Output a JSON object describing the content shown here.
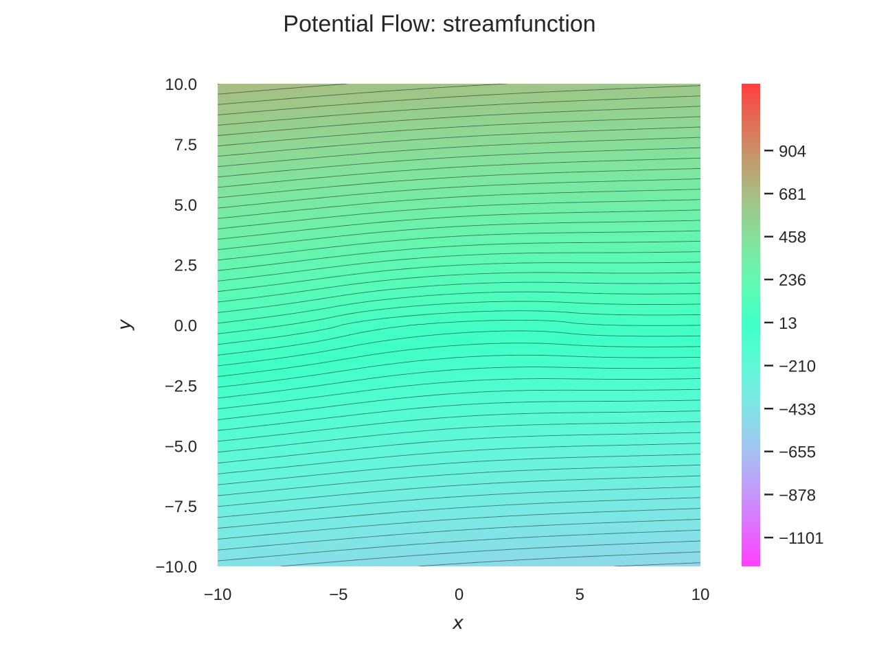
{
  "chart_data": {
    "type": "contour",
    "title": "Potential Flow: streamfunction",
    "xlabel": "x",
    "ylabel": "y",
    "xlim": [
      -10,
      10
    ],
    "ylim": [
      -10,
      10
    ],
    "x_ticks": [
      -10,
      -5,
      0,
      5,
      10
    ],
    "x_tick_labels": [
      "−10",
      "−5",
      "0",
      "5",
      "10"
    ],
    "y_ticks": [
      10,
      7.5,
      5,
      2.5,
      0,
      -2.5,
      -5,
      -7.5,
      -10
    ],
    "y_tick_labels": [
      "10.0",
      "7.5",
      "5.0",
      "2.5",
      "0.0",
      "−2.5",
      "−5.0",
      "−7.5",
      "−10.0"
    ],
    "colorbar": {
      "colormap": "rainbow",
      "range": [
        -1250,
        1250
      ],
      "ticks": [
        904,
        681,
        458,
        236,
        13,
        -210,
        -433,
        -655,
        -878,
        -1101
      ],
      "tick_labels": [
        "904",
        "681",
        "458",
        "236",
        "13",
        "−210",
        "−433",
        "−655",
        "−878",
        "−1101"
      ]
    },
    "flow": {
      "freestream_angle_deg": 3.6,
      "vortex_sheet_x": [
        -5,
        4.5
      ],
      "vortex_sheet_y": 0
    },
    "grid": false
  }
}
